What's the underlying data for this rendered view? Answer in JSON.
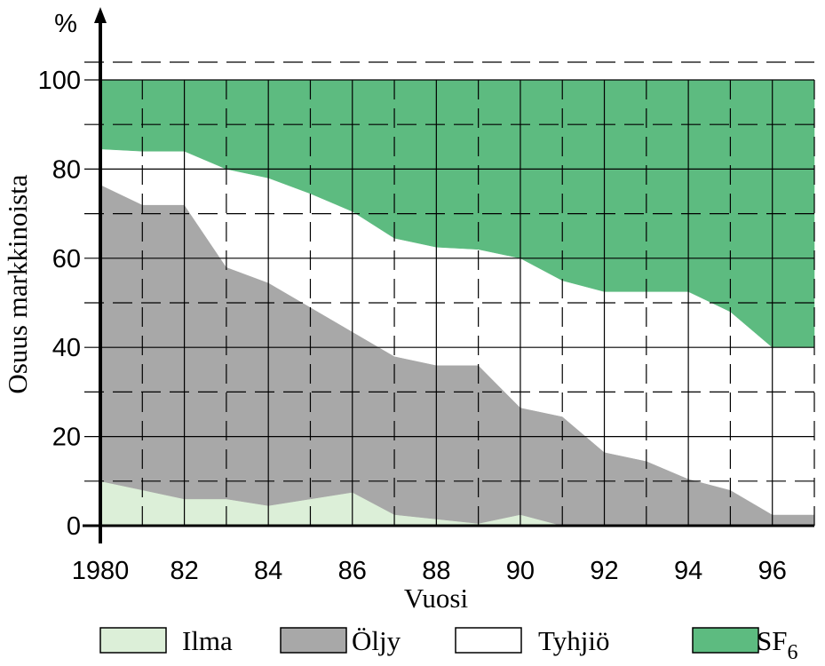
{
  "chart_data": {
    "type": "area",
    "stacked": true,
    "title": "",
    "xlabel": "Vuosi",
    "ylabel": "Osuus markkinoista",
    "y_unit": "%",
    "xlim": [
      1980,
      1997
    ],
    "ylim": [
      0,
      100
    ],
    "x": [
      1980,
      1981,
      1982,
      1983,
      1984,
      1985,
      1986,
      1987,
      1988,
      1989,
      1990,
      1991,
      1992,
      1993,
      1994,
      1995,
      1996,
      1997
    ],
    "x_tick_labels": [
      "1980",
      "82",
      "84",
      "86",
      "88",
      "90",
      "92",
      "94",
      "96"
    ],
    "y_tick_labels": [
      "0",
      "20",
      "40",
      "60",
      "80",
      "100"
    ],
    "grid": true,
    "legend_position": "bottom",
    "series": [
      {
        "name": "Ilma",
        "color": "#dcefd8",
        "values": [
          10,
          8,
          6,
          6,
          4.5,
          6,
          7.5,
          2.5,
          1.5,
          0.5,
          2.5,
          0,
          0,
          0,
          0,
          0,
          0,
          0
        ]
      },
      {
        "name": "Öljy",
        "color": "#a8a8a8",
        "values": [
          66.5,
          64,
          66,
          52,
          50,
          43,
          36,
          35.5,
          34.5,
          35.5,
          24,
          24.5,
          16.5,
          14.5,
          10.5,
          8,
          2.5,
          2.5
        ]
      },
      {
        "name": "Tyhjiö",
        "color": "#ffffff",
        "values": [
          8,
          12,
          12,
          22,
          23.5,
          25.5,
          27,
          26.5,
          26.5,
          26,
          33.5,
          30.5,
          36,
          38,
          42,
          40,
          37.5,
          37.5
        ]
      },
      {
        "name": "SF6",
        "color": "#5dbb80",
        "values": [
          15.5,
          16,
          16,
          20,
          22,
          25.5,
          29.5,
          35.5,
          37.5,
          38,
          40,
          45,
          47.5,
          47.5,
          47.5,
          52,
          60,
          60
        ]
      }
    ],
    "legend": [
      {
        "label": "Ilma",
        "subscript": "",
        "color": "#dcefd8"
      },
      {
        "label": "Öljy",
        "subscript": "",
        "color": "#a8a8a8"
      },
      {
        "label": "Tyhjiö",
        "subscript": "",
        "color": "#ffffff"
      },
      {
        "label": "SF",
        "subscript": "6",
        "color": "#5dbb80"
      }
    ]
  }
}
